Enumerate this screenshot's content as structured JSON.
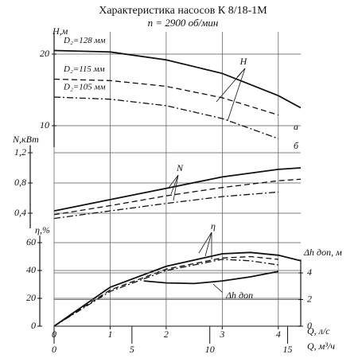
{
  "chart_data": {
    "type": "line",
    "title": "Характеристика насосов К 8/18-1М",
    "subtitle": "n = 2900 об/мин",
    "grid": true,
    "xaxes": [
      {
        "label": "Q, л/с",
        "xlim": [
          0,
          4.4
        ],
        "xticks": [
          0,
          1,
          2,
          3,
          4
        ]
      },
      {
        "label": "Q, м³/ч",
        "xlim": [
          0,
          15.84
        ],
        "xticks": [
          0,
          5,
          10,
          15
        ]
      }
    ],
    "panels": [
      {
        "ylabel": "H,м",
        "ylim": [
          7,
          23
        ],
        "yticks": [
          10,
          20
        ],
        "series": [
          {
            "name": "D₂=128 мм",
            "color": "#111111",
            "style": "solid",
            "x": [
              0,
              1,
              2,
              3,
              4,
              4.4
            ],
            "values": [
              20.5,
              20.3,
              19.2,
              17.3,
              14.2,
              12.5
            ]
          },
          {
            "name": "D₂=115 мм",
            "color": "#111111",
            "style": "dashed",
            "x": [
              0,
              1,
              2,
              3,
              4
            ],
            "values": [
              16.5,
              16.3,
              15.5,
              13.9,
              11.5
            ]
          },
          {
            "name": "D₂=105 мм",
            "color": "#111111",
            "style": "dashdot",
            "x": [
              0,
              1,
              2,
              3,
              4
            ],
            "values": [
              14,
              13.7,
              12.8,
              11,
              8.2
            ]
          }
        ]
      },
      {
        "ylabel": "N,кВт",
        "ylim": [
          0.2,
          1.3
        ],
        "yticks": [
          {
            "value": 1.2,
            "label": "1,2"
          },
          {
            "value": 0.8,
            "label": "0,8"
          },
          {
            "value": 0.4,
            "label": "0,4"
          }
        ],
        "series": [
          {
            "color": "#111111",
            "style": "solid",
            "x": [
              0,
              1,
              2,
              3,
              4,
              4.4
            ],
            "values": [
              0.43,
              0.58,
              0.73,
              0.88,
              0.98,
              1.0
            ]
          },
          {
            "color": "#111111",
            "style": "dashed",
            "x": [
              0,
              1,
              2,
              3,
              4,
              4.4
            ],
            "values": [
              0.38,
              0.5,
              0.63,
              0.74,
              0.83,
              0.85
            ]
          },
          {
            "color": "#111111",
            "style": "dashdot",
            "x": [
              0,
              1,
              2,
              3,
              4
            ],
            "values": [
              0.33,
              0.43,
              0.53,
              0.62,
              0.68
            ]
          }
        ]
      },
      {
        "ylabel": "η,%",
        "ylim": [
          0,
          65
        ],
        "yticks": [
          0,
          20,
          40,
          60
        ],
        "series": [
          {
            "color": "#111111",
            "style": "solid",
            "x": [
              0,
              1,
              2,
              3,
              3.5,
              4,
              4.4
            ],
            "values": [
              0,
              28,
              43,
              52,
              53,
              51,
              47
            ]
          },
          {
            "color": "#111111",
            "style": "dashed",
            "x": [
              0,
              1,
              2,
              3,
              3.5,
              4
            ],
            "values": [
              0,
              26,
              41,
              49,
              50,
              48
            ]
          },
          {
            "color": "#111111",
            "style": "dashdot",
            "x": [
              0,
              1,
              2,
              3,
              3.5,
              4
            ],
            "values": [
              0,
              25,
              40,
              48,
              47,
              44
            ]
          }
        ]
      },
      {
        "ylabel": "Δh доп, м",
        "axis": "y2",
        "ylim": [
          0,
          5
        ],
        "yticks": [
          0,
          2,
          4
        ],
        "series": [
          {
            "color": "#111111",
            "style": "solid",
            "x": [
              1.6,
              2,
              2.5,
              3,
              3.5,
              4
            ],
            "values": [
              3.4,
              3.25,
              3.2,
              3.4,
              3.7,
              4.1
            ]
          }
        ]
      }
    ],
    "annotations": [
      "H",
      "N",
      "η",
      "Δh доп",
      "а",
      "б"
    ]
  }
}
